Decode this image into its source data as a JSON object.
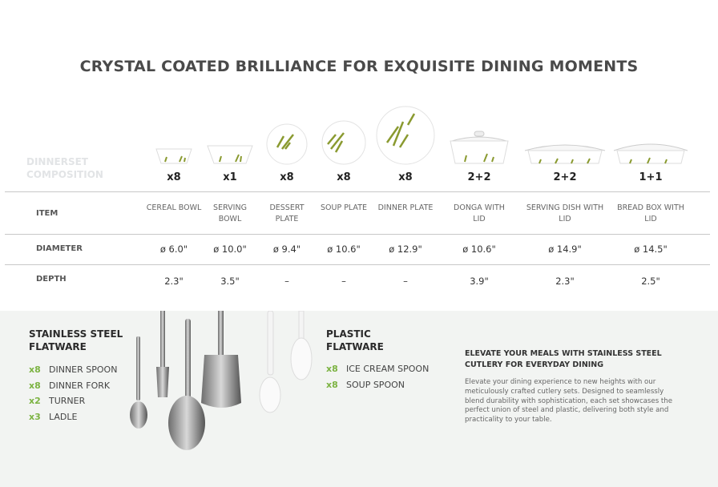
{
  "title": "CRYSTAL COATED BRILLIANCE FOR EXQUISITE DINING MOMENTS",
  "composition_label": "DINNERSET COMPOSITION",
  "row_labels": {
    "item": "ITEM",
    "diameter": "DIAMETER",
    "depth": "DEPTH"
  },
  "items": [
    {
      "qty": "x8",
      "name": "CEREAL BOWL",
      "diameter": "ø 6.0\"",
      "depth": "2.3\"",
      "kind": "bowl-small"
    },
    {
      "qty": "x1",
      "name": "SERVING BOWL",
      "diameter": "ø 10.0\"",
      "depth": "3.5\"",
      "kind": "bowl"
    },
    {
      "qty": "x8",
      "name": "DESSERT PLATE",
      "diameter": "ø 9.4\"",
      "depth": "–",
      "kind": "plate-small"
    },
    {
      "qty": "x8",
      "name": "SOUP PLATE",
      "diameter": "ø 10.6\"",
      "depth": "–",
      "kind": "plate"
    },
    {
      "qty": "x8",
      "name": "DINNER PLATE",
      "diameter": "ø 12.9\"",
      "depth": "–",
      "kind": "plate-large"
    },
    {
      "qty": "2+2",
      "name": "DONGA WITH LID",
      "diameter": "ø 10.6\"",
      "depth": "3.9\"",
      "kind": "lidded-bowl"
    },
    {
      "qty": "2+2",
      "name": "SERVING DISH WITH LID",
      "diameter": "ø 14.9\"",
      "depth": "2.3\"",
      "kind": "lidded-dish"
    },
    {
      "qty": "1+1",
      "name": "BREAD BOX WITH LID",
      "diameter": "ø 14.5\"",
      "depth": "2.5\"",
      "kind": "lidded-box"
    }
  ],
  "steel": {
    "heading": "STAINLESS STEEL FLATWARE",
    "items": [
      {
        "qty": "x8",
        "name": "DINNER SPOON"
      },
      {
        "qty": "x8",
        "name": "DINNER FORK"
      },
      {
        "qty": "x2",
        "name": "TURNER"
      },
      {
        "qty": "x3",
        "name": "LADLE"
      }
    ]
  },
  "plastic": {
    "heading": "PLASTIC FLATWARE",
    "items": [
      {
        "qty": "x8",
        "name": "ICE CREAM SPOON"
      },
      {
        "qty": "x8",
        "name": "SOUP SPOON"
      }
    ]
  },
  "promo": {
    "heading": "ELEVATE YOUR MEALS WITH STAINLESS STEEL CUTLERY FOR EVERYDAY DINING",
    "body": "Elevate your dining experience to new heights with our meticulously crafted cutlery sets. Designed to seamlessly blend durability with sophistication, each set showcases the perfect union of steel and plastic, delivering both style and practicality to your table."
  },
  "colors": {
    "accent": "#7cb342",
    "panel": "#f2f4f2"
  }
}
